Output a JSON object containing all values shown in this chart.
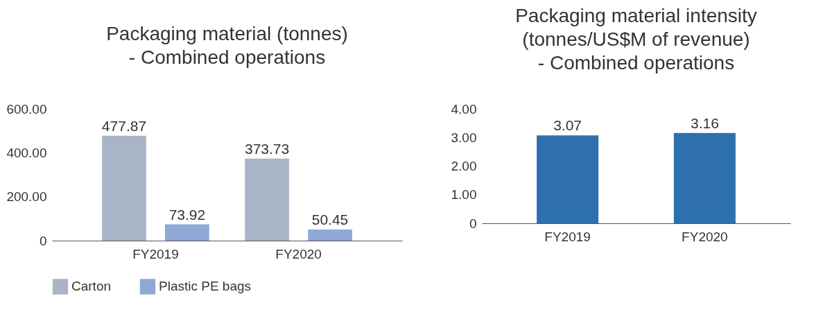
{
  "chart_data": [
    {
      "type": "bar",
      "title": "Packaging material (tonnes)\n- Combined operations",
      "categories": [
        "FY2019",
        "FY2020"
      ],
      "series": [
        {
          "name": "Carton",
          "color": "#a9b5c6",
          "values": [
            477.87,
            373.73
          ]
        },
        {
          "name": "Plastic PE bags",
          "color": "#8fa8d8",
          "values": [
            73.92,
            50.45
          ]
        }
      ],
      "ylim": [
        0,
        600
      ],
      "yticks": [
        {
          "value": 0,
          "label": "0"
        },
        {
          "value": 200,
          "label": "200.00"
        },
        {
          "value": 400,
          "label": "400.00"
        },
        {
          "value": 600,
          "label": "600.00"
        }
      ],
      "grid": false,
      "legend": "bottom",
      "data_labels": true
    },
    {
      "type": "bar",
      "title": "Packaging material intensity\n(tonnes/US$M of revenue)\n- Combined operations",
      "categories": [
        "FY2019",
        "FY2020"
      ],
      "values": [
        3.07,
        3.16
      ],
      "color": "#2e6fad",
      "ylim": [
        0,
        4
      ],
      "yticks": [
        {
          "value": 0,
          "label": "0"
        },
        {
          "value": 1,
          "label": "1.00"
        },
        {
          "value": 2,
          "label": "2.00"
        },
        {
          "value": 3,
          "label": "3.00"
        },
        {
          "value": 4,
          "label": "4.00"
        }
      ],
      "grid": false,
      "data_labels": true
    }
  ]
}
